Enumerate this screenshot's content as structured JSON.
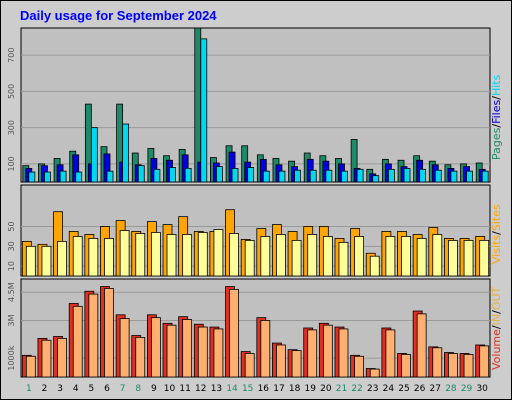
{
  "title": "Daily usage for September 2024",
  "colors": {
    "frame_bg": "#cdcdcd",
    "plot_bg": "#c0c0c0",
    "pages": "#1e8a6a",
    "files": "#0000e0",
    "hits": "#00d8f0",
    "visits": "#ffa500",
    "sites": "#ffff99",
    "volume": "#e03020",
    "in": "#ffb070",
    "out": "#e8b040",
    "weekend_day": "#1e8a6a",
    "weekday": "#000000",
    "title": "#0000ff"
  },
  "chart_data": [
    {
      "type": "bar",
      "panel": "hits",
      "categories": [
        "1",
        "2",
        "3",
        "4",
        "5",
        "6",
        "7",
        "8",
        "9",
        "10",
        "11",
        "12",
        "13",
        "14",
        "15",
        "16",
        "17",
        "18",
        "19",
        "20",
        "21",
        "22",
        "23",
        "24",
        "25",
        "26",
        "27",
        "28",
        "29",
        "30"
      ],
      "ylim": [
        0,
        850
      ],
      "yticks": [
        {
          "v": 100,
          "label": "100"
        },
        {
          "v": 300,
          "label": "300"
        },
        {
          "v": 500,
          "label": "500"
        },
        {
          "v": 700,
          "label": "700"
        }
      ],
      "series": [
        {
          "name": "Pages",
          "color_key": "pages",
          "values": [
            90,
            100,
            130,
            170,
            430,
            195,
            430,
            160,
            185,
            145,
            180,
            850,
            135,
            200,
            200,
            150,
            130,
            115,
            160,
            145,
            130,
            235,
            70,
            125,
            120,
            145,
            115,
            95,
            100,
            105
          ]
        },
        {
          "name": "Files",
          "color_key": "files",
          "values": [
            75,
            90,
            95,
            150,
            100,
            155,
            110,
            95,
            130,
            120,
            150,
            110,
            105,
            165,
            110,
            125,
            95,
            85,
            125,
            115,
            100,
            75,
            45,
            100,
            85,
            120,
            95,
            75,
            85,
            70
          ]
        },
        {
          "name": "Hits",
          "color_key": "hits",
          "values": [
            55,
            55,
            60,
            55,
            300,
            60,
            320,
            90,
            70,
            80,
            75,
            790,
            85,
            75,
            80,
            60,
            60,
            65,
            65,
            65,
            60,
            70,
            35,
            70,
            75,
            70,
            65,
            60,
            60,
            60
          ]
        }
      ],
      "legend": [
        {
          "label": "Pages",
          "color_key": "pages"
        },
        {
          "label": "/",
          "color_key": "weekday"
        },
        {
          "label": "Files",
          "color_key": "files"
        },
        {
          "label": "/",
          "color_key": "weekday"
        },
        {
          "label": "Hits",
          "color_key": "hits"
        }
      ]
    },
    {
      "type": "bar",
      "panel": "visits",
      "categories": [
        "1",
        "2",
        "3",
        "4",
        "5",
        "6",
        "7",
        "8",
        "9",
        "10",
        "11",
        "12",
        "13",
        "14",
        "15",
        "16",
        "17",
        "18",
        "19",
        "20",
        "21",
        "22",
        "23",
        "24",
        "25",
        "26",
        "27",
        "28",
        "29",
        "30"
      ],
      "ylim": [
        0,
        92
      ],
      "yticks": [
        {
          "v": 10,
          "label": "10"
        },
        {
          "v": 30,
          "label": "30"
        },
        {
          "v": 50,
          "label": "50"
        }
      ],
      "series": [
        {
          "name": "Visits",
          "color_key": "visits",
          "values": [
            35,
            32,
            65,
            45,
            42,
            50,
            56,
            45,
            55,
            52,
            60,
            45,
            45,
            67,
            37,
            48,
            52,
            45,
            50,
            50,
            38,
            48,
            23,
            45,
            45,
            42,
            49,
            38,
            38,
            40
          ]
        },
        {
          "name": "Sites",
          "color_key": "sites",
          "values": [
            30,
            30,
            35,
            40,
            38,
            38,
            46,
            43,
            44,
            42,
            42,
            44,
            47,
            43,
            36,
            40,
            42,
            36,
            42,
            40,
            34,
            40,
            20,
            40,
            40,
            38,
            42,
            36,
            36,
            36
          ]
        }
      ],
      "legend": [
        {
          "label": "Visits",
          "color_key": "visits"
        },
        {
          "label": "/",
          "color_key": "weekday"
        },
        {
          "label": "Sites",
          "color_key": "visits"
        }
      ]
    },
    {
      "type": "bar",
      "panel": "volume",
      "categories": [
        "1",
        "2",
        "3",
        "4",
        "5",
        "6",
        "7",
        "8",
        "9",
        "10",
        "11",
        "12",
        "13",
        "14",
        "15",
        "16",
        "17",
        "18",
        "19",
        "20",
        "21",
        "22",
        "23",
        "24",
        "25",
        "26",
        "27",
        "28",
        "29",
        "30"
      ],
      "ylim": [
        0,
        5200000
      ],
      "yticks": [
        {
          "v": 1000000,
          "label": "1000k"
        },
        {
          "v": 3000000,
          "label": "3M"
        },
        {
          "v": 4500000,
          "label": "4.5M"
        }
      ],
      "series": [
        {
          "name": "Volume",
          "color_key": "volume",
          "values": [
            1150000,
            2050000,
            2150000,
            3900000,
            4550000,
            4800000,
            3300000,
            2200000,
            3300000,
            2850000,
            3200000,
            2800000,
            2650000,
            4800000,
            1350000,
            3150000,
            1800000,
            1450000,
            2600000,
            2850000,
            2650000,
            1150000,
            450000,
            2600000,
            1250000,
            3500000,
            1600000,
            1300000,
            1250000,
            1700000
          ]
        },
        {
          "name": "IN",
          "color_key": "in",
          "values": [
            1100000,
            1950000,
            2050000,
            3750000,
            4400000,
            4700000,
            3100000,
            2100000,
            3150000,
            2750000,
            3050000,
            2650000,
            2550000,
            4650000,
            1250000,
            3000000,
            1700000,
            1400000,
            2500000,
            2750000,
            2550000,
            1100000,
            420000,
            2500000,
            1200000,
            3350000,
            1550000,
            1250000,
            1200000,
            1650000
          ]
        }
      ],
      "legend": [
        {
          "label": "Volume",
          "color_key": "volume"
        },
        {
          "label": "/",
          "color_key": "weekday"
        },
        {
          "label": "IN",
          "color_key": "out"
        },
        {
          "label": "/",
          "color_key": "weekday"
        },
        {
          "label": "OUT",
          "color_key": "out"
        }
      ]
    }
  ],
  "weekend_days": [
    "1",
    "7",
    "8",
    "14",
    "15",
    "21",
    "22",
    "28",
    "29"
  ]
}
